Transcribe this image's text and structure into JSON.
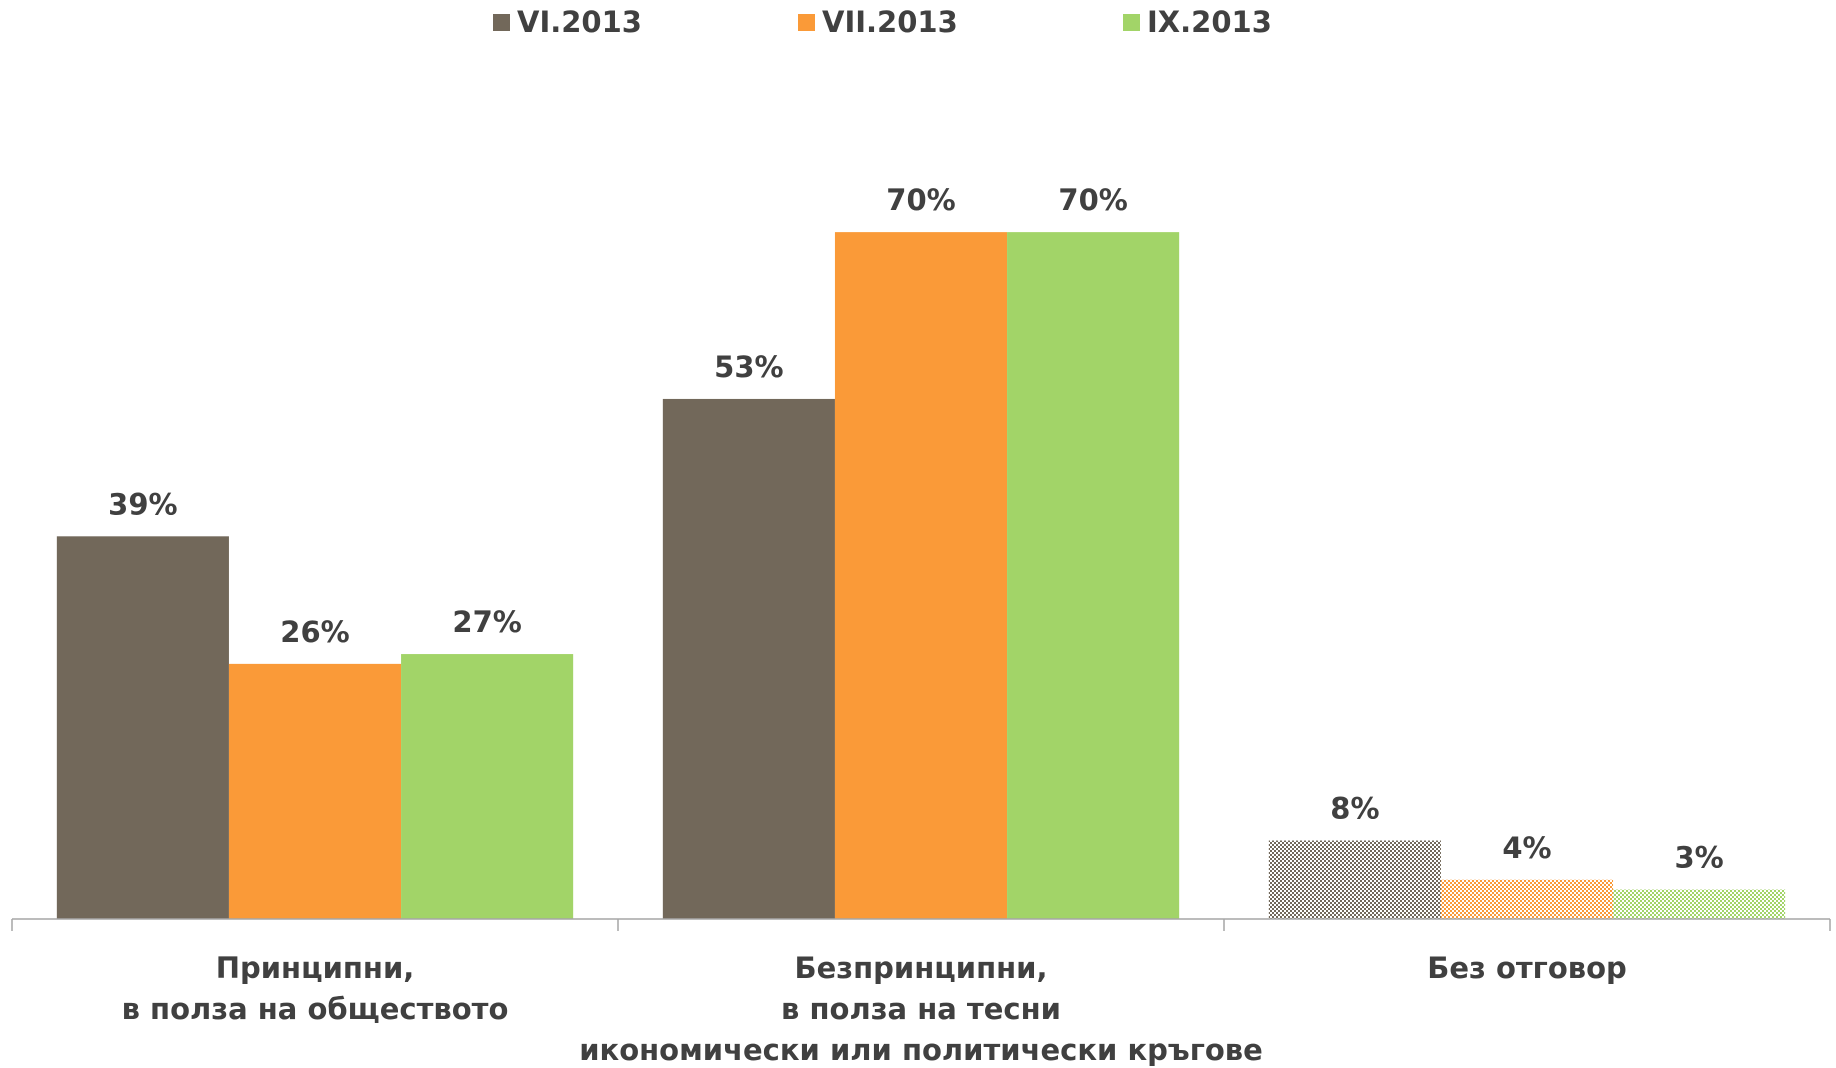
{
  "chart_data": {
    "type": "bar",
    "categories": [
      [
        "Принципни,",
        "в полза на обществото"
      ],
      [
        "Безпринципни,",
        "в полза на тесни",
        "икономически или политически кръгове"
      ],
      [
        "Без отговор"
      ]
    ],
    "series": [
      {
        "name": "VI.2013",
        "color": "#72685a",
        "values": [
          39,
          53,
          8
        ],
        "value_labels": [
          "39%",
          "53%",
          "8%"
        ]
      },
      {
        "name": "VII.2013",
        "color": "#fa9a38",
        "values": [
          26,
          70,
          4
        ],
        "value_labels": [
          "26%",
          "70%",
          "4%"
        ]
      },
      {
        "name": "IX.2013",
        "color": "#a2d468",
        "values": [
          27,
          70,
          3
        ],
        "value_labels": [
          "27%",
          "70%",
          "3%"
        ]
      }
    ],
    "hatched": [
      false,
      false,
      true
    ],
    "ylim": [
      0,
      80
    ],
    "legend": "top"
  }
}
